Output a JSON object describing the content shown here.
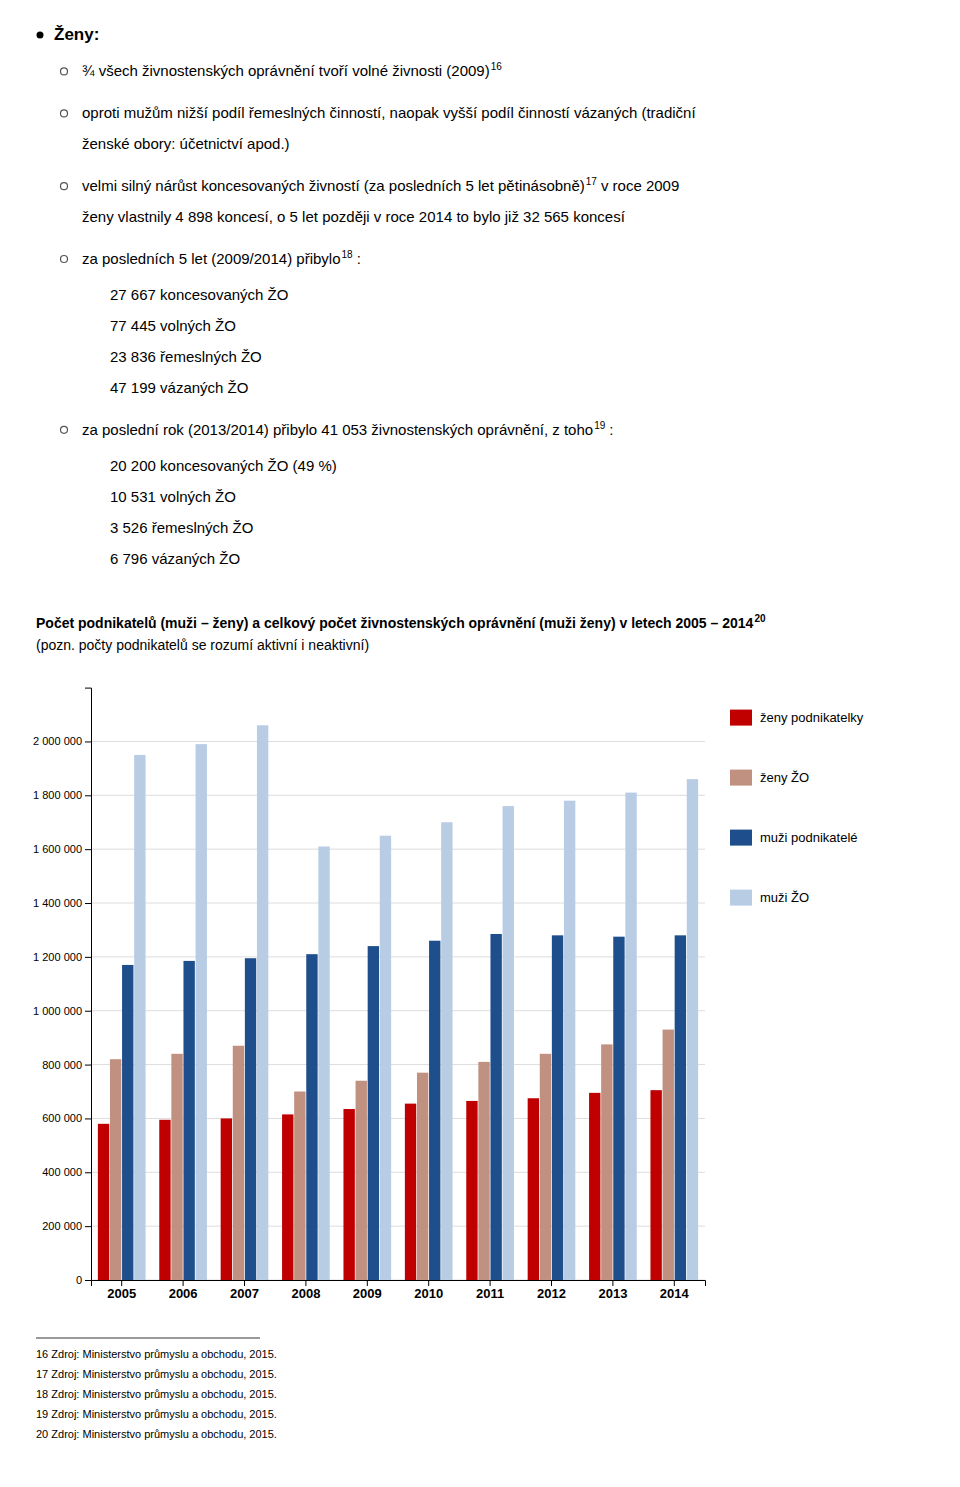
{
  "chart_data": {
    "type": "bar",
    "title": "Počet podnikatelů (muži – ženy) a celkový počet živnostenských oprávnění (muži ženy) v letech 2005 – 2014",
    "title_sup": "20",
    "subtitle": "(pozn. počty podnikatelů se rozumí aktivní i neaktivní)",
    "categories": [
      "2005",
      "2006",
      "2007",
      "2008",
      "2009",
      "2010",
      "2011",
      "2012",
      "2013",
      "2014"
    ],
    "series": [
      {
        "name": "ženy podnikatelky",
        "color": "#c00000",
        "values": [
          580000,
          595000,
          600000,
          615000,
          635000,
          655000,
          665000,
          675000,
          695000,
          705000
        ]
      },
      {
        "name": "ženy ŽO",
        "color": "#c09080",
        "values": [
          820000,
          840000,
          870000,
          700000,
          740000,
          770000,
          810000,
          840000,
          875000,
          930000
        ]
      },
      {
        "name": "muži podnikatelé",
        "color": "#1f4e8c",
        "values": [
          1170000,
          1185000,
          1195000,
          1210000,
          1240000,
          1260000,
          1285000,
          1280000,
          1275000,
          1280000
        ]
      },
      {
        "name": "muži ŽO",
        "color": "#b8cce4",
        "values": [
          1950000,
          1990000,
          2060000,
          1610000,
          1650000,
          1700000,
          1760000,
          1780000,
          1810000,
          1860000
        ]
      }
    ],
    "ylim": [
      0,
      2200000
    ],
    "yticks": [
      0,
      {
        "value": 200000,
        "label": "200 000"
      },
      {
        "value": 400000,
        "label": "400 000"
      },
      {
        "value": 600000,
        "label": "600 000"
      },
      {
        "value": 800000,
        "label": "800 000"
      },
      {
        "value": 1000000,
        "label": "1 000 000"
      },
      {
        "value": 1200000,
        "label": "1 200 000"
      },
      {
        "value": 1400000,
        "label": "1 400 000"
      },
      {
        "value": 1600000,
        "label": "1 600 000"
      },
      {
        "value": 1800000,
        "label": "1 800 000"
      },
      {
        "value": 2000000,
        "label": "2 000 000"
      }
    ],
    "grid": true,
    "legend": "right",
    "annotations": [
      {
        "heading": "Ženy:",
        "points": [
          {
            "lines": [
              [
                {
                  "text": "¾ všech živnostenských oprávnění tvoří volné živnosti (2009)"
                },
                {
                  "sup": "16"
                }
              ]
            ]
          },
          {
            "lines": [
              [
                {
                  "text": "oproti mužům nižší podíl řemeslných činností, naopak vyšší podíl činností vázaných (tradiční"
                }
              ],
              [
                {
                  "text": "ženské obory: účetnictví apod.)"
                }
              ]
            ]
          },
          {
            "lines": [
              [
                {
                  "text": "velmi silný nárůst koncesovaných živností (za posledních 5 let pětinásobně)"
                },
                {
                  "sup": "17"
                },
                {
                  "text": "v roce 2009"
                }
              ],
              [
                {
                  "text": "ženy vlastnily 4 898 koncesí, o 5 let později v roce 2014 to bylo již 32 565 koncesí"
                }
              ]
            ]
          },
          {
            "lines": [
              [
                {
                  "text": "za posledních 5 let (2009/2014) přibylo"
                },
                {
                  "sup": "18"
                },
                {
                  "text": ":"
                }
              ]
            ],
            "list": [
              "27 667 koncesovaných ŽO",
              "77 445 volných ŽO",
              "23 836 řemeslných ŽO",
              "47 199 vázaných ŽO"
            ]
          },
          {
            "lines": [
              [
                {
                  "text": "za poslední rok (2013/2014) přibylo 41 053 živnostenských oprávnění, z toho"
                },
                {
                  "sup": "19"
                },
                {
                  "text": ":"
                }
              ]
            ],
            "list": [
              "20 200 koncesovaných ŽO (49 %)",
              "10 531 volných ŽO",
              "3 526 řemeslných ŽO",
              "6 796 vázaných ŽO"
            ]
          }
        ]
      }
    ],
    "footnotes": [
      "16 Zdroj: Ministerstvo průmyslu a obchodu, 2015.",
      "17 Zdroj: Ministerstvo průmyslu a obchodu, 2015.",
      "18 Zdroj: Ministerstvo průmyslu a obchodu, 2015.",
      "19 Zdroj: Ministerstvo průmyslu a obchodu, 2015.",
      "20 Zdroj: Ministerstvo průmyslu a obchodu, 2015."
    ]
  }
}
